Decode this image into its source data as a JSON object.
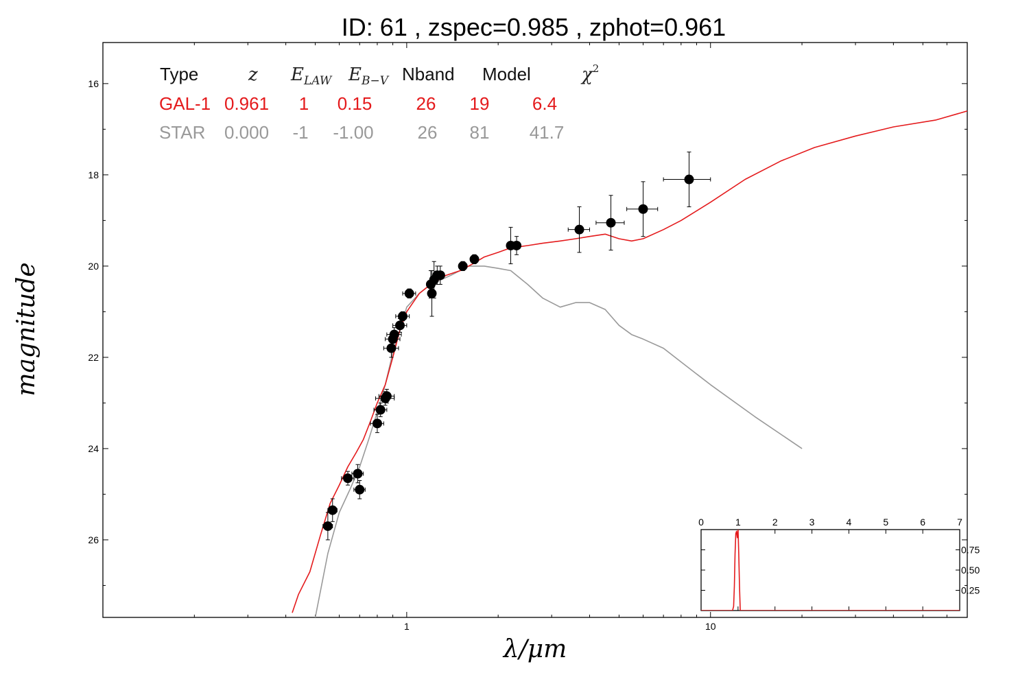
{
  "title": "ID:  61     , zspec=0.985 , zphot=0.961",
  "colors": {
    "galaxy": "#e41a1c",
    "star": "#999999",
    "points": "#000000"
  },
  "table": {
    "headers": {
      "type": "Type",
      "z": "z",
      "elaw_base": "E",
      "elaw_sub": "LAW",
      "ebv_base": "E",
      "ebv_sub": "B−V",
      "nband": "Nband",
      "model": "Model",
      "chi2_base": "χ",
      "chi2_sup": "2"
    },
    "rows": [
      {
        "type": "GAL-1",
        "z": "0.961",
        "elaw": "1",
        "ebv": "0.15",
        "nband": "26",
        "model": "19",
        "chi2": "6.4"
      },
      {
        "type": "STAR",
        "z": "0.000",
        "elaw": "-1",
        "ebv": "-1.00",
        "nband": "26",
        "model": "81",
        "chi2": "41.7"
      }
    ]
  },
  "chart_data": [
    {
      "type": "scatter",
      "xlabel": "λ/μm",
      "ylabel": "magnitude",
      "xscale": "log",
      "xlim": [
        0.1,
        70
      ],
      "ylim": [
        27.7,
        15.1
      ],
      "y_inverted": true,
      "xticks": [
        1,
        10
      ],
      "xtick_labels": [
        "1",
        "10"
      ],
      "yticks": [
        16,
        18,
        20,
        22,
        24,
        26
      ],
      "ytick_labels": [
        "16",
        "18",
        "20",
        "22",
        "24",
        "26"
      ],
      "grid": false,
      "series": [
        {
          "name": "GAL-1",
          "kind": "line",
          "color": "#e41a1c",
          "x": [
            0.42,
            0.44,
            0.48,
            0.52,
            0.56,
            0.6,
            0.64,
            0.68,
            0.72,
            0.76,
            0.8,
            0.85,
            0.9,
            0.95,
            1.0,
            1.1,
            1.2,
            1.35,
            1.5,
            1.65,
            1.8,
            2.0,
            2.2,
            2.5,
            2.8,
            3.2,
            3.6,
            4.0,
            4.5,
            5.0,
            5.5,
            6.0,
            7.0,
            8.0,
            10.0,
            13.0,
            17.0,
            22.0,
            30.0,
            40.0,
            55.0,
            70.0
          ],
          "y": [
            27.6,
            27.2,
            26.7,
            25.9,
            25.2,
            24.8,
            24.4,
            24.1,
            23.8,
            23.4,
            23.0,
            22.6,
            22.0,
            21.4,
            21.0,
            20.6,
            20.4,
            20.2,
            20.1,
            19.95,
            19.8,
            19.7,
            19.6,
            19.55,
            19.5,
            19.45,
            19.4,
            19.35,
            19.3,
            19.4,
            19.45,
            19.4,
            19.2,
            19.0,
            18.6,
            18.1,
            17.7,
            17.4,
            17.15,
            16.95,
            16.8,
            16.6
          ]
        },
        {
          "name": "STAR",
          "kind": "line",
          "color": "#999999",
          "x": [
            0.5,
            0.55,
            0.6,
            0.65,
            0.7,
            0.75,
            0.8,
            0.85,
            0.9,
            0.95,
            1.0,
            1.1,
            1.2,
            1.4,
            1.6,
            1.8,
            2.0,
            2.2,
            2.5,
            2.8,
            3.2,
            3.6,
            4.0,
            4.5,
            5.0,
            5.5,
            6.0,
            7.0,
            8.0,
            10.0,
            14.0,
            20.0
          ],
          "y": [
            27.7,
            26.3,
            25.4,
            24.9,
            24.4,
            23.8,
            23.2,
            22.6,
            21.9,
            21.4,
            20.9,
            20.6,
            20.4,
            20.2,
            20.0,
            20.0,
            20.05,
            20.1,
            20.4,
            20.7,
            20.9,
            20.8,
            20.8,
            20.95,
            21.3,
            21.5,
            21.6,
            21.8,
            22.1,
            22.6,
            23.3,
            24.0
          ]
        },
        {
          "name": "photometry",
          "kind": "points",
          "color": "#000000",
          "x": [
            0.55,
            0.57,
            0.64,
            0.69,
            0.7,
            0.8,
            0.82,
            0.85,
            0.86,
            0.89,
            0.9,
            0.91,
            0.95,
            0.97,
            1.02,
            1.2,
            1.21,
            1.23,
            1.26,
            1.29,
            1.53,
            1.67,
            2.2,
            2.3,
            3.7,
            4.7,
            6.0,
            8.5
          ],
          "y": [
            25.7,
            25.35,
            24.65,
            24.55,
            24.9,
            23.45,
            23.15,
            22.9,
            22.85,
            21.8,
            21.6,
            21.5,
            21.3,
            21.1,
            20.6,
            20.4,
            20.6,
            20.3,
            20.2,
            20.2,
            20.0,
            19.85,
            19.55,
            19.55,
            19.2,
            19.05,
            18.75,
            18.1
          ],
          "xerr": [
            0.02,
            0.02,
            0.03,
            0.03,
            0.03,
            0.04,
            0.04,
            0.06,
            0.05,
            0.05,
            0.05,
            0.05,
            0.05,
            0.05,
            0.05,
            0.03,
            0.03,
            0.03,
            0.03,
            0.03,
            0.04,
            0.04,
            0.05,
            0.05,
            0.3,
            0.5,
            0.7,
            1.5
          ],
          "yerr": [
            0.3,
            0.25,
            0.15,
            0.2,
            0.2,
            0.2,
            0.15,
            0.15,
            0.15,
            0.2,
            0.15,
            0.15,
            0.15,
            0.1,
            0.1,
            0.3,
            0.5,
            0.4,
            0.2,
            0.2,
            0.1,
            0.1,
            0.4,
            0.2,
            0.5,
            0.6,
            0.6,
            0.6
          ]
        }
      ]
    },
    {
      "type": "line",
      "inset": true,
      "xlim": [
        0,
        7
      ],
      "ylim": [
        0,
        1.0
      ],
      "xticks": [
        0,
        1,
        2,
        3,
        4,
        5,
        6,
        7
      ],
      "xtick_labels": [
        "0",
        "1",
        "2",
        "3",
        "4",
        "5",
        "6",
        "7"
      ],
      "yticks": [
        0.25,
        0.5,
        0.75
      ],
      "ytick_labels": [
        "0.25",
        "0.50",
        "0.75"
      ],
      "series": [
        {
          "name": "PDZ",
          "color": "#e41a1c",
          "x": [
            0,
            0.85,
            0.88,
            0.9,
            0.92,
            0.94,
            0.96,
            0.98,
            1.0,
            1.02,
            1.04,
            1.06,
            7
          ],
          "y": [
            0,
            0,
            0.05,
            0.3,
            0.7,
            0.95,
            0.98,
            0.9,
            1.0,
            0.7,
            0.3,
            0.0,
            0
          ]
        }
      ]
    }
  ]
}
